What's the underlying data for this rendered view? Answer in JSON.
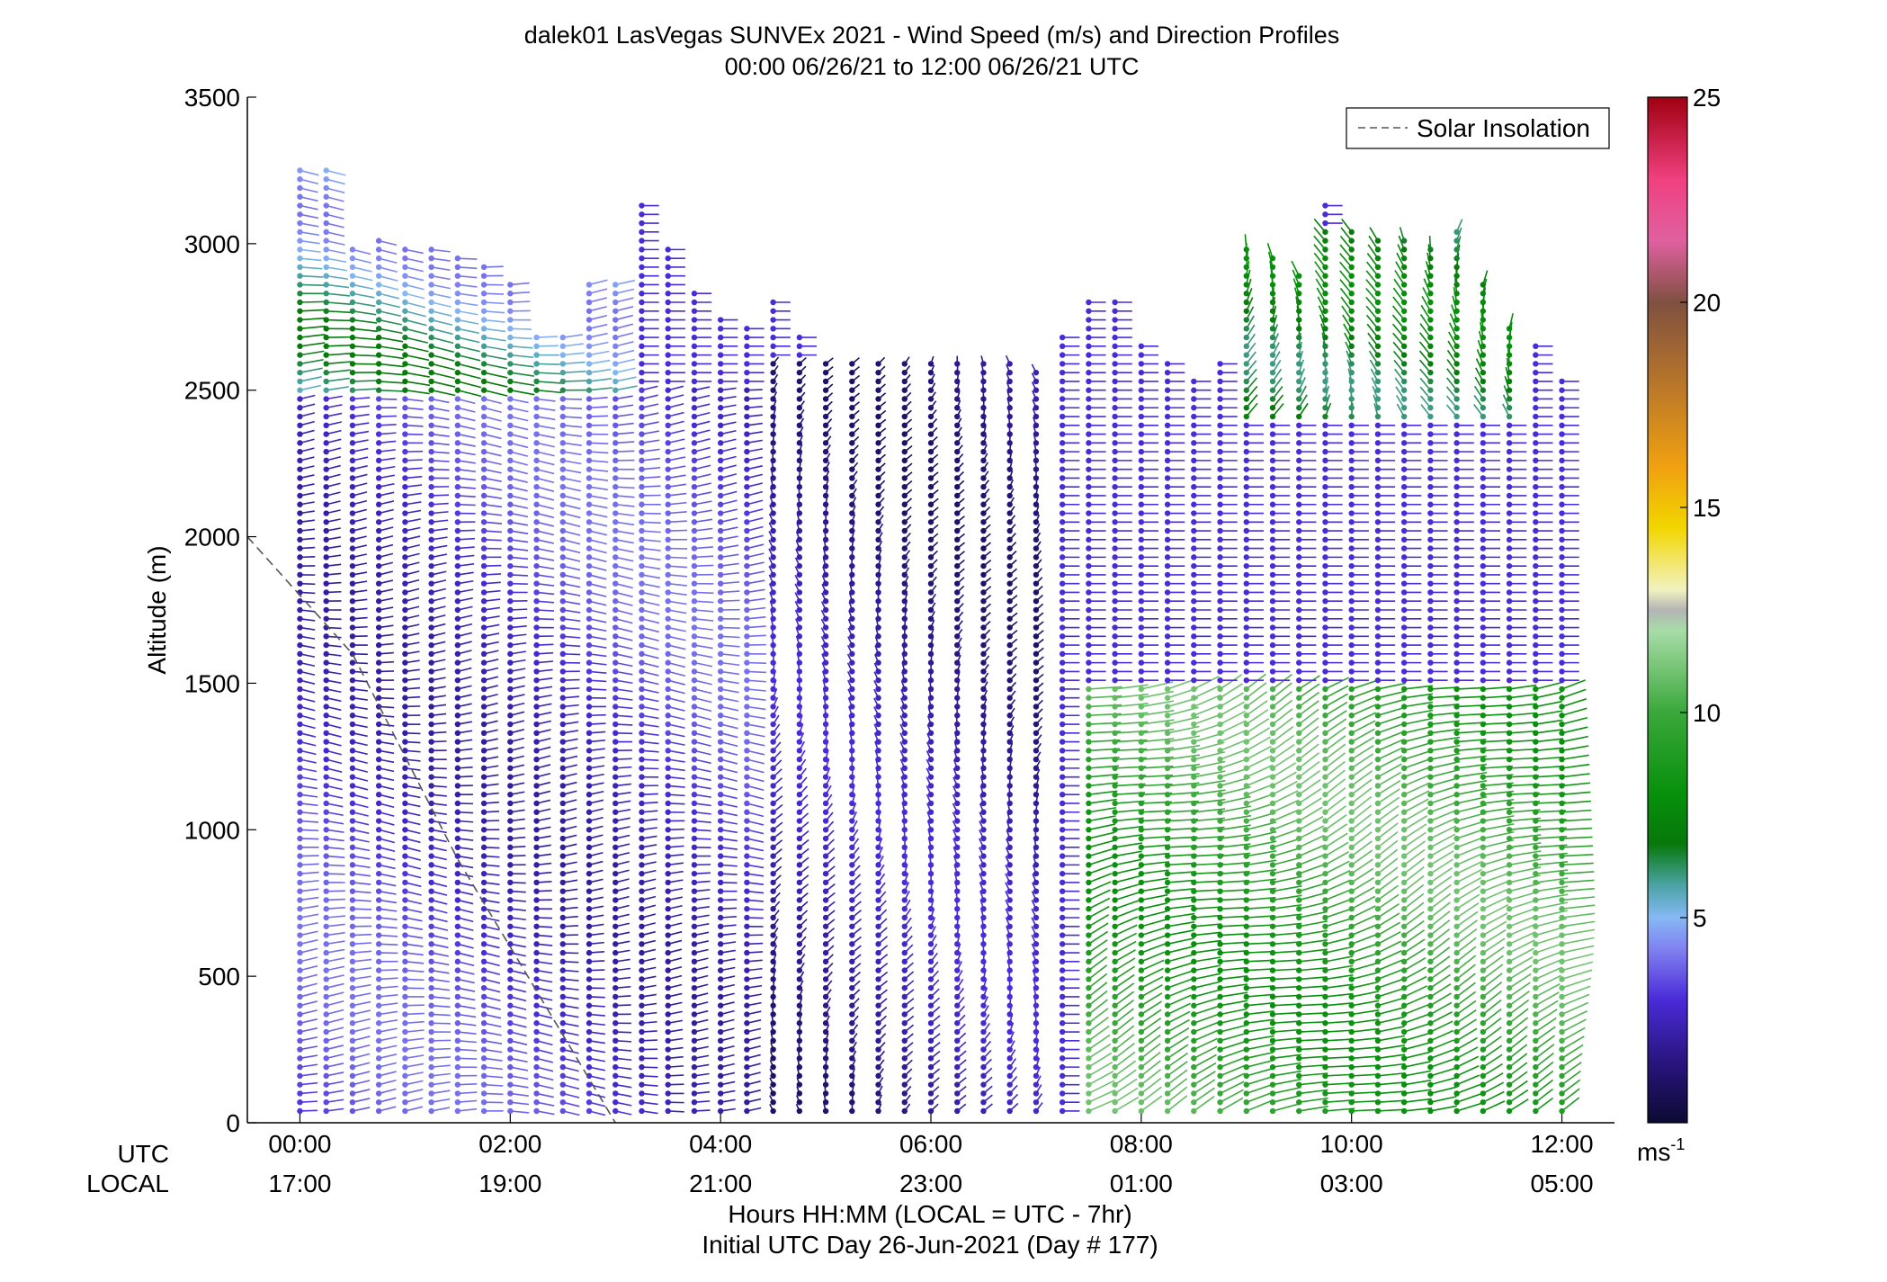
{
  "chart_data": {
    "type": "wind-barb-profile",
    "title": "dalek01 LasVegas SUNVEx 2021 - Wind Speed (m/s) and Direction Profiles",
    "subtitle": "00:00 06/26/21 to 12:00 06/26/21  UTC",
    "ylabel": "Altitude (m)",
    "ylim": [
      0,
      3500
    ],
    "yticks": [
      0,
      500,
      1000,
      1500,
      2000,
      2500,
      3000,
      3500
    ],
    "xlim_hours": [
      -0.5,
      12.5
    ],
    "xticks": [
      {
        "hour": 0,
        "utc": "00:00",
        "local": "17:00"
      },
      {
        "hour": 2,
        "utc": "02:00",
        "local": "19:00"
      },
      {
        "hour": 4,
        "utc": "04:00",
        "local": "21:00"
      },
      {
        "hour": 6,
        "utc": "06:00",
        "local": "23:00"
      },
      {
        "hour": 8,
        "utc": "08:00",
        "local": "01:00"
      },
      {
        "hour": 10,
        "utc": "10:00",
        "local": "03:00"
      },
      {
        "hour": 12,
        "utc": "12:00",
        "local": "05:00"
      }
    ],
    "row_label_utc": "UTC",
    "row_label_local": "LOCAL",
    "xlabel": "Hours HH:MM  (LOCAL = UTC - 7hr)",
    "xlabel2": "Initial UTC Day 26-Jun-2021 (Day # 177)",
    "legend": {
      "label": "Solar Insolation",
      "placement": "top-right",
      "line": "dashed"
    },
    "colorbar": {
      "range": [
        0,
        25
      ],
      "ticks": [
        5,
        10,
        15,
        20,
        25
      ],
      "unit_base": "ms",
      "unit_exp": "-1",
      "stops": [
        {
          "v": 0,
          "color": "#0b0a33"
        },
        {
          "v": 1.5,
          "color": "#2a1580"
        },
        {
          "v": 3,
          "color": "#4a2bd8"
        },
        {
          "v": 4.2,
          "color": "#7f7ff0"
        },
        {
          "v": 5,
          "color": "#86b8f5"
        },
        {
          "v": 5.8,
          "color": "#4aa3a3"
        },
        {
          "v": 6.8,
          "color": "#07780a"
        },
        {
          "v": 8,
          "color": "#07900b"
        },
        {
          "v": 10,
          "color": "#3aa83a"
        },
        {
          "v": 12,
          "color": "#a8dca8"
        },
        {
          "v": 12.5,
          "color": "#b4b4b4"
        },
        {
          "v": 13,
          "color": "#f2f2c0"
        },
        {
          "v": 14.5,
          "color": "#f2d600"
        },
        {
          "v": 16,
          "color": "#f0a010"
        },
        {
          "v": 18,
          "color": "#b8762a"
        },
        {
          "v": 20,
          "color": "#805040"
        },
        {
          "v": 21.5,
          "color": "#e060a0"
        },
        {
          "v": 23,
          "color": "#f04080"
        },
        {
          "v": 25,
          "color": "#a00010"
        }
      ]
    },
    "profile_times_hours": [
      0,
      0.25,
      0.5,
      0.75,
      1,
      1.25,
      1.5,
      1.75,
      2,
      2.25,
      2.5,
      2.75,
      3,
      3.25,
      3.5,
      3.75,
      4,
      4.25,
      4.5,
      4.75,
      5,
      5.25,
      5.5,
      5.75,
      6,
      6.25,
      6.5,
      6.75,
      7,
      7.25,
      7.5,
      7.75,
      8,
      8.25,
      8.5,
      8.75,
      9,
      9.25,
      9.5,
      9.75,
      10,
      10.25,
      10.5,
      10.75,
      11,
      11.25,
      11.5,
      11.75,
      12
    ],
    "profile_tops_m": [
      3270,
      3270,
      2990,
      3010,
      2980,
      2990,
      2970,
      2920,
      2880,
      2700,
      2700,
      2880,
      2860,
      3140,
      2990,
      2850,
      2740,
      2730,
      2820,
      2700,
      2600,
      2600,
      2600,
      2600,
      2600,
      2600,
      2600,
      2600,
      2580,
      2680,
      2820,
      2800,
      2650,
      2600,
      2550,
      2600,
      2980,
      2960,
      2900,
      3140,
      3040,
      3020,
      3020,
      2980,
      3040,
      2880,
      2720,
      2650,
      2550
    ],
    "speed_regimes": [
      {
        "hours": [
          0,
          4.5
        ],
        "alt_m": [
          0,
          2500
        ],
        "speed_ms": [
          2,
          4
        ],
        "direction_deg": 270
      },
      {
        "hours": [
          0,
          3
        ],
        "alt_m": [
          2500,
          3300
        ],
        "speed_ms": [
          4,
          7
        ],
        "direction_deg": 270
      },
      {
        "hours": [
          4.5,
          7
        ],
        "alt_m": [
          0,
          2600
        ],
        "speed_ms": [
          1,
          3
        ],
        "direction_deg": 350
      },
      {
        "hours": [
          7.5,
          12
        ],
        "alt_m": [
          0,
          1500
        ],
        "speed_ms": [
          8,
          11
        ],
        "direction_deg": 300
      },
      {
        "hours": [
          9,
          11.5
        ],
        "alt_m": [
          2400,
          3050
        ],
        "speed_ms": [
          6,
          8
        ],
        "direction_deg": 0
      }
    ],
    "solar_insolation_dashed": {
      "hours": [
        -0.5,
        0.5,
        1.5,
        2.5,
        3
      ],
      "alt_m": [
        2000,
        1600,
        900,
        300,
        0
      ]
    }
  }
}
